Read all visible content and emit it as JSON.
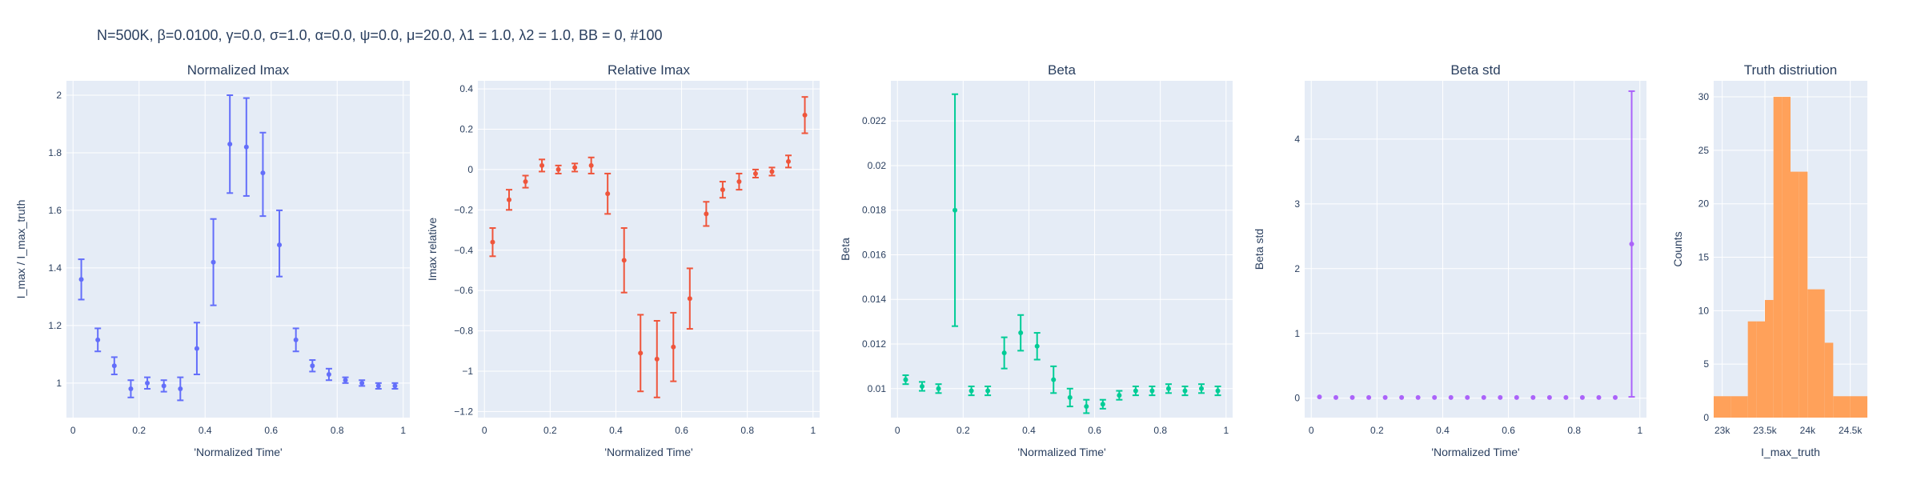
{
  "figure": {
    "suptitle": "N=500K, β=0.0100, γ=0.0, σ=1.0,  α=0.0, ψ=0.0, μ=20.0, λ1 = 1.0, λ2 = 1.0, BB = 0, #100"
  },
  "chart_data": [
    {
      "type": "scatter",
      "title": "Normalized Imax",
      "xlabel": "'Normalized Time'",
      "ylabel": "I_max / I_max_truth",
      "xlim": [
        -0.02,
        1.02
      ],
      "ylim": [
        0.88,
        2.05
      ],
      "xticks": [
        0,
        0.2,
        0.4,
        0.6,
        0.8,
        1
      ],
      "xtick_labels": [
        "0",
        "0.2",
        "0.4",
        "0.6",
        "0.8",
        "1"
      ],
      "yticks": [
        1,
        1.2,
        1.4,
        1.6,
        1.8,
        2
      ],
      "ytick_labels": [
        "1",
        "1.2",
        "1.4",
        "1.6",
        "1.8",
        "2"
      ],
      "color": "#636efa",
      "grid": true,
      "x": [
        0.025,
        0.075,
        0.125,
        0.175,
        0.225,
        0.275,
        0.325,
        0.375,
        0.425,
        0.475,
        0.525,
        0.575,
        0.625,
        0.675,
        0.725,
        0.775,
        0.825,
        0.875,
        0.925,
        0.975
      ],
      "y": [
        1.36,
        1.15,
        1.06,
        0.98,
        1.0,
        0.99,
        0.98,
        1.12,
        1.42,
        1.83,
        1.82,
        1.73,
        1.48,
        1.15,
        1.06,
        1.03,
        1.01,
        1.0,
        0.99,
        0.99
      ],
      "err_low": [
        0.07,
        0.04,
        0.03,
        0.03,
        0.02,
        0.02,
        0.04,
        0.09,
        0.15,
        0.17,
        0.17,
        0.15,
        0.11,
        0.04,
        0.02,
        0.02,
        0.01,
        0.01,
        0.01,
        0.01
      ],
      "err_high": [
        0.07,
        0.04,
        0.03,
        0.03,
        0.02,
        0.02,
        0.04,
        0.09,
        0.15,
        0.17,
        0.17,
        0.14,
        0.12,
        0.04,
        0.02,
        0.02,
        0.01,
        0.01,
        0.01,
        0.01
      ]
    },
    {
      "type": "scatter",
      "title": "Relative Imax",
      "xlabel": "'Normalized Time'",
      "ylabel": "Imax relative",
      "xlim": [
        -0.02,
        1.02
      ],
      "ylim": [
        -1.23,
        0.44
      ],
      "xticks": [
        0,
        0.2,
        0.4,
        0.6,
        0.8,
        1
      ],
      "xtick_labels": [
        "0",
        "0.2",
        "0.4",
        "0.6",
        "0.8",
        "1"
      ],
      "yticks": [
        -1.2,
        -1,
        -0.8,
        -0.6,
        -0.4,
        -0.2,
        0,
        0.2,
        0.4
      ],
      "ytick_labels": [
        "−1.2",
        "−1",
        "−0.8",
        "−0.6",
        "−0.4",
        "−0.2",
        "0",
        "0.2",
        "0.4"
      ],
      "color": "#ef553b",
      "grid": true,
      "x": [
        0.025,
        0.075,
        0.125,
        0.175,
        0.225,
        0.275,
        0.325,
        0.375,
        0.425,
        0.475,
        0.525,
        0.575,
        0.625,
        0.675,
        0.725,
        0.775,
        0.825,
        0.875,
        0.925,
        0.975
      ],
      "y": [
        -0.36,
        -0.15,
        -0.06,
        0.02,
        0.0,
        0.01,
        0.02,
        -0.12,
        -0.45,
        -0.91,
        -0.94,
        -0.88,
        -0.64,
        -0.22,
        -0.1,
        -0.06,
        -0.02,
        -0.01,
        0.04,
        0.27
      ],
      "err_low": [
        0.07,
        0.05,
        0.03,
        0.03,
        0.02,
        0.02,
        0.04,
        0.1,
        0.16,
        0.19,
        0.19,
        0.17,
        0.15,
        0.06,
        0.04,
        0.04,
        0.02,
        0.02,
        0.03,
        0.09
      ],
      "err_high": [
        0.07,
        0.05,
        0.03,
        0.03,
        0.02,
        0.02,
        0.04,
        0.1,
        0.16,
        0.19,
        0.19,
        0.17,
        0.15,
        0.06,
        0.04,
        0.04,
        0.02,
        0.02,
        0.03,
        0.09
      ]
    },
    {
      "type": "scatter",
      "title": "Beta",
      "xlabel": "'Normalized Time'",
      "ylabel": "Beta",
      "xlim": [
        -0.02,
        1.02
      ],
      "ylim": [
        0.0087,
        0.0238
      ],
      "xticks": [
        0,
        0.2,
        0.4,
        0.6,
        0.8,
        1
      ],
      "xtick_labels": [
        "0",
        "0.2",
        "0.4",
        "0.6",
        "0.8",
        "1"
      ],
      "yticks": [
        0.01,
        0.012,
        0.014,
        0.016,
        0.018,
        0.02,
        0.022
      ],
      "ytick_labels": [
        "0.01",
        "0.012",
        "0.014",
        "0.016",
        "0.018",
        "0.02",
        "0.022"
      ],
      "color": "#00cc96",
      "grid": true,
      "x": [
        0.025,
        0.075,
        0.125,
        0.175,
        0.225,
        0.275,
        0.325,
        0.375,
        0.425,
        0.475,
        0.525,
        0.575,
        0.625,
        0.675,
        0.725,
        0.775,
        0.825,
        0.875,
        0.925,
        0.975
      ],
      "y": [
        0.0104,
        0.0101,
        0.01,
        0.018,
        0.0099,
        0.0099,
        0.0116,
        0.0125,
        0.0119,
        0.0104,
        0.0096,
        0.0092,
        0.0093,
        0.0097,
        0.0099,
        0.0099,
        0.01,
        0.0099,
        0.01,
        0.0099
      ],
      "err_low": [
        0.0002,
        0.0002,
        0.0002,
        0.0052,
        0.0002,
        0.0002,
        0.0007,
        0.0008,
        0.0006,
        0.0006,
        0.0004,
        0.0003,
        0.0002,
        0.0002,
        0.0002,
        0.0002,
        0.0002,
        0.0002,
        0.0002,
        0.0002
      ],
      "err_high": [
        0.0002,
        0.0002,
        0.0002,
        0.0052,
        0.0002,
        0.0002,
        0.0007,
        0.0008,
        0.0006,
        0.0006,
        0.0004,
        0.0003,
        0.0002,
        0.0002,
        0.0002,
        0.0002,
        0.0002,
        0.0002,
        0.0002,
        0.0002
      ]
    },
    {
      "type": "scatter",
      "title": "Beta std",
      "xlabel": "'Normalized Time'",
      "ylabel": "Beta std",
      "xlim": [
        -0.02,
        1.02
      ],
      "ylim": [
        -0.3,
        4.9
      ],
      "xticks": [
        0,
        0.2,
        0.4,
        0.6,
        0.8,
        1
      ],
      "xtick_labels": [
        "0",
        "0.2",
        "0.4",
        "0.6",
        "0.8",
        "1"
      ],
      "yticks": [
        0,
        1,
        2,
        3,
        4
      ],
      "ytick_labels": [
        "0",
        "1",
        "2",
        "3",
        "4"
      ],
      "color": "#ab63fa",
      "grid": true,
      "x": [
        0.025,
        0.075,
        0.125,
        0.175,
        0.225,
        0.275,
        0.325,
        0.375,
        0.425,
        0.475,
        0.525,
        0.575,
        0.625,
        0.675,
        0.725,
        0.775,
        0.825,
        0.875,
        0.925,
        0.975
      ],
      "y": [
        0.02,
        0.01,
        0.01,
        0.01,
        0.01,
        0.01,
        0.01,
        0.01,
        0.01,
        0.01,
        0.01,
        0.01,
        0.01,
        0.01,
        0.01,
        0.01,
        0.01,
        0.01,
        0.01,
        2.38
      ],
      "err_low": [
        0,
        0,
        0,
        0,
        0,
        0,
        0,
        0,
        0,
        0,
        0,
        0,
        0,
        0,
        0,
        0,
        0,
        0,
        0,
        2.36
      ],
      "err_high": [
        0,
        0,
        0,
        0,
        0,
        0,
        0,
        0,
        0,
        0,
        0,
        0,
        0,
        0,
        0,
        0,
        0,
        0,
        0,
        2.36
      ]
    },
    {
      "type": "bar",
      "subtype": "histogram",
      "title": "Truth distriution",
      "xlabel": "I_max_truth",
      "ylabel": "Counts",
      "xlim": [
        22900,
        24700
      ],
      "ylim": [
        0,
        31.5
      ],
      "xticks": [
        23000,
        23500,
        24000,
        24500
      ],
      "xtick_labels": [
        "23k",
        "23.5k",
        "24k",
        "24.5k"
      ],
      "yticks": [
        0,
        5,
        10,
        15,
        20,
        25,
        30
      ],
      "ytick_labels": [
        "0",
        "5",
        "10",
        "15",
        "20",
        "25",
        "30"
      ],
      "color": "#ffa15a",
      "grid": true,
      "bin_edges": [
        22900,
        23100,
        23300,
        23400,
        23500,
        23600,
        23700,
        23800,
        23900,
        24000,
        24100,
        24200,
        24300,
        24500,
        24700
      ],
      "values": [
        2,
        2,
        9,
        9,
        11,
        30,
        30,
        23,
        23,
        12,
        12,
        7,
        2,
        2
      ]
    }
  ]
}
